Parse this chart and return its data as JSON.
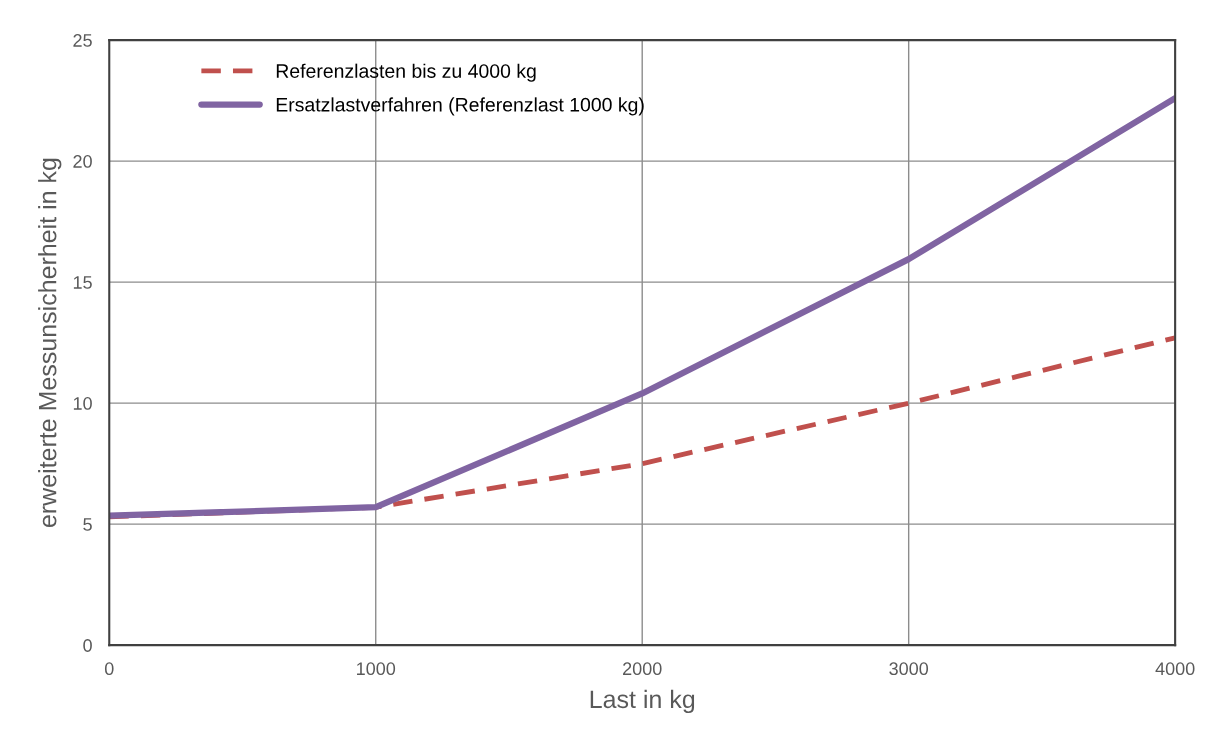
{
  "chart_data": {
    "type": "line",
    "xlabel": "Last in kg",
    "ylabel": "erweiterte Messunsicherheit in kg",
    "x": [
      0,
      1000,
      2000,
      3000,
      4000
    ],
    "series": [
      {
        "name": "Referenzlasten bis zu 4000 kg",
        "color": "#c0504d",
        "line_style": "dashed",
        "values": [
          5.3,
          5.7,
          7.5,
          10.0,
          12.7
        ]
      },
      {
        "name": "Ersatzlastverfahren (Referenzlast 1000 kg)",
        "color": "#8064a2",
        "line_style": "solid",
        "values": [
          5.35,
          5.7,
          10.4,
          15.95,
          22.6
        ]
      }
    ],
    "xlim": [
      0,
      4000
    ],
    "xticks": [
      0,
      1000,
      2000,
      3000,
      4000
    ],
    "ylim": [
      0,
      25
    ],
    "yticks": [
      0,
      5,
      10,
      15,
      20,
      25
    ],
    "grid": true,
    "legend": "top left"
  }
}
